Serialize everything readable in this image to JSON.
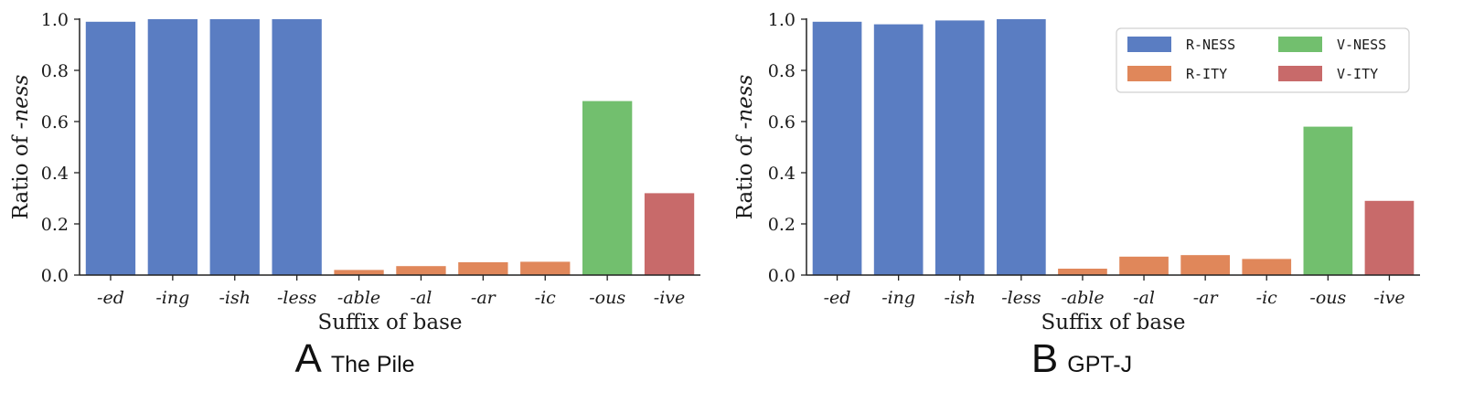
{
  "chart_data": [
    {
      "type": "bar",
      "panel_letter": "A",
      "panel_name": "The Pile",
      "categories": [
        "-ed",
        "-ing",
        "-ish",
        "-less",
        "-able",
        "-al",
        "-ar",
        "-ic",
        "-ous",
        "-ive"
      ],
      "values": [
        0.99,
        1.0,
        1.0,
        1.0,
        0.02,
        0.035,
        0.05,
        0.052,
        0.68,
        0.32
      ],
      "category_groups": [
        "R-NESS",
        "R-NESS",
        "R-NESS",
        "R-NESS",
        "R-ITY",
        "R-ITY",
        "R-ITY",
        "R-ITY",
        "V-NESS",
        "V-ITY"
      ],
      "xlabel": "Suffix of base",
      "ylabel_prefix": "Ratio of ",
      "ylabel_emph": "-ness",
      "ylim": [
        0,
        1.0
      ],
      "yticks": [
        "0.0",
        "0.2",
        "0.4",
        "0.6",
        "0.8",
        "1.0"
      ],
      "grid": false,
      "legend": null
    },
    {
      "type": "bar",
      "panel_letter": "B",
      "panel_name": "GPT-J",
      "categories": [
        "-ed",
        "-ing",
        "-ish",
        "-less",
        "-able",
        "-al",
        "-ar",
        "-ic",
        "-ous",
        "-ive"
      ],
      "values": [
        0.99,
        0.98,
        0.995,
        1.0,
        0.025,
        0.072,
        0.078,
        0.063,
        0.58,
        0.29
      ],
      "category_groups": [
        "R-NESS",
        "R-NESS",
        "R-NESS",
        "R-NESS",
        "R-ITY",
        "R-ITY",
        "R-ITY",
        "R-ITY",
        "V-NESS",
        "V-ITY"
      ],
      "xlabel": "Suffix of base",
      "ylabel_prefix": "Ratio of ",
      "ylabel_emph": "-ness",
      "ylim": [
        0,
        1.0
      ],
      "yticks": [
        "0.0",
        "0.2",
        "0.4",
        "0.6",
        "0.8",
        "1.0"
      ],
      "grid": false,
      "legend": {
        "placement": "top-right",
        "entries": [
          "R-NESS",
          "V-NESS",
          "R-ITY",
          "V-ITY"
        ]
      }
    }
  ],
  "colors": {
    "R-NESS": "#5a7dc2",
    "R-ITY": "#e0875a",
    "V-NESS": "#72bf6e",
    "V-ITY": "#c86a6a"
  }
}
